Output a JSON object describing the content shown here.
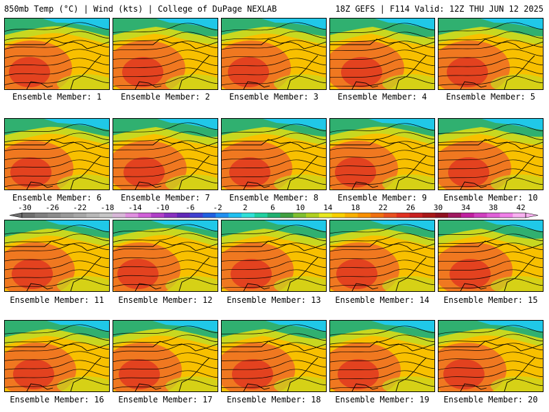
{
  "header": {
    "left": "850mb Temp (°C) | Wind (kts) | College of DuPage NEXLAB",
    "right": "18Z GEFS | F114 Valid: 12Z THU JUN 12 2025"
  },
  "panel_label_prefix": "Ensemble Member:",
  "members": [
    "1",
    "2",
    "3",
    "4",
    "5",
    "6",
    "7",
    "8",
    "9",
    "10",
    "11",
    "12",
    "13",
    "14",
    "15",
    "16",
    "17",
    "18",
    "19",
    "20"
  ],
  "colorbar": {
    "ticks": [
      "-30",
      "-26",
      "-22",
      "-18",
      "-14",
      "-10",
      "-6",
      "-2",
      "2",
      "6",
      "10",
      "14",
      "18",
      "22",
      "26",
      "30",
      "34",
      "38",
      "42"
    ],
    "colors": [
      "#6e6e6e",
      "#808080",
      "#8c8c8c",
      "#9a9a9a",
      "#a8a8a8",
      "#b8b8b8",
      "#c6c6c6",
      "#d8b8d8",
      "#e090e0",
      "#d060d8",
      "#b040c8",
      "#8830c0",
      "#6028b8",
      "#4040d0",
      "#2060e0",
      "#2090f0",
      "#20c0f0",
      "#30e0d8",
      "#20d0a0",
      "#20b070",
      "#40a040",
      "#80c030",
      "#b0d020",
      "#e8e820",
      "#f8d000",
      "#f8b000",
      "#f89000",
      "#f07010",
      "#e85020",
      "#e03020",
      "#c82020",
      "#a81818",
      "#901020",
      "#a01860",
      "#c020a0",
      "#d040c0",
      "#e060d8",
      "#f080e8",
      "#f8b0f0"
    ],
    "colors_note_unused": ""
  },
  "legend_colors": {
    "cold": "#20c8e8",
    "cool": "#30b070",
    "mild": "#c8d820",
    "warm": "#f8c000",
    "hot": "#f07820",
    "very_hot": "#e03820",
    "border": "#000000"
  }
}
